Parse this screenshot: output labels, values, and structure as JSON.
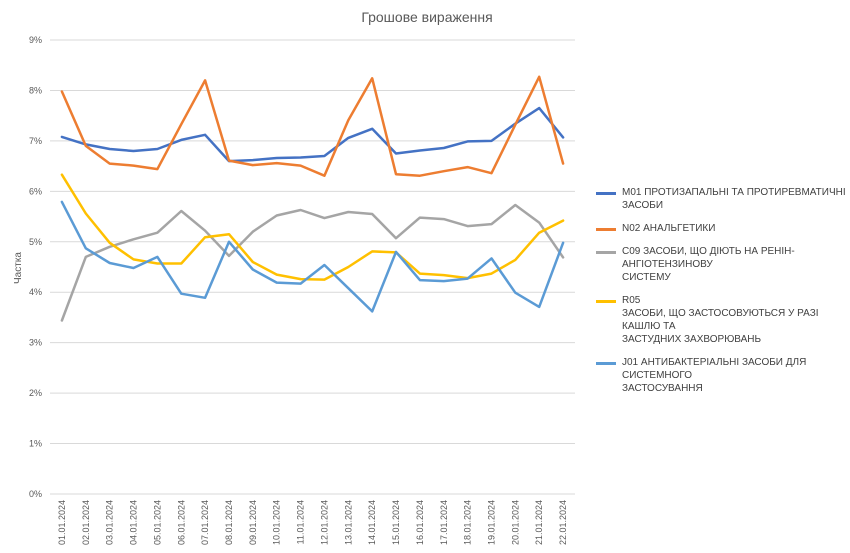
{
  "chart_data": {
    "type": "line",
    "title": "Грошове вираження",
    "ylabel": "Частка",
    "xlabel": "",
    "ylim": [
      0,
      9
    ],
    "y_ticks": [
      "0%",
      "1%",
      "2%",
      "3%",
      "4%",
      "5%",
      "6%",
      "7%",
      "8%",
      "9%"
    ],
    "categories": [
      "01.01.2024",
      "02.01.2024",
      "03.01.2024",
      "04.01.2024",
      "05.01.2024",
      "06.01.2024",
      "07.01.2024",
      "08.01.2024",
      "09.01.2024",
      "10.01.2024",
      "11.01.2024",
      "12.01.2024",
      "13.01.2024",
      "14.01.2024",
      "15.01.2024",
      "16.01.2024",
      "17.01.2024",
      "18.01.2024",
      "19.01.2024",
      "20.01.2024",
      "21.01.2024",
      "22.01.2024"
    ],
    "grid": true,
    "legend_position": "right",
    "series": [
      {
        "name": "M01 ПРОТИЗАПАЛЬНІ ТА ПРОТИРЕВМАТИЧНІ ЗАСОБИ",
        "color": "#4472C4",
        "values": [
          7.08,
          6.93,
          6.84,
          6.8,
          6.84,
          7.02,
          7.12,
          6.6,
          6.62,
          6.66,
          6.67,
          6.7,
          7.06,
          7.24,
          6.75,
          6.81,
          6.86,
          6.99,
          7.0,
          7.34,
          7.65,
          7.07
        ]
      },
      {
        "name": "N02 АНАЛЬГЕТИКИ",
        "color": "#ED7D31",
        "values": [
          7.98,
          6.9,
          6.55,
          6.51,
          6.44,
          7.33,
          8.2,
          6.61,
          6.52,
          6.56,
          6.51,
          6.31,
          7.41,
          8.24,
          6.34,
          6.31,
          6.4,
          6.48,
          6.36,
          7.32,
          8.27,
          6.55
        ]
      },
      {
        "name": "C09 ЗАСОБИ, ЩО ДІЮТЬ НА РЕНІН-АНГІОТЕНЗИНОВУ\nСИСТЕМУ",
        "color": "#A5A5A5",
        "values": [
          3.44,
          4.7,
          4.9,
          5.05,
          5.18,
          5.61,
          5.22,
          4.72,
          5.2,
          5.52,
          5.63,
          5.47,
          5.59,
          5.55,
          5.07,
          5.48,
          5.45,
          5.31,
          5.35,
          5.73,
          5.38,
          4.69
        ]
      },
      {
        "name": "R05\nЗАСОБИ, ЩО ЗАСТОСОВУЮТЬСЯ У РАЗІ КАШЛЮ ТА\nЗАСТУДНИХ ЗАХВОРЮВАНЬ",
        "color": "#FFC000",
        "values": [
          6.33,
          5.56,
          4.98,
          4.65,
          4.57,
          4.57,
          5.09,
          5.15,
          4.6,
          4.35,
          4.26,
          4.25,
          4.5,
          4.81,
          4.79,
          4.37,
          4.34,
          4.28,
          4.37,
          4.64,
          5.18,
          5.42
        ]
      },
      {
        "name": "J01 АНТИБАКТЕРІАЛЬНІ ЗАСОБИ ДЛЯ СИСТЕМНОГО\nЗАСТОСУВАННЯ",
        "color": "#5B9BD5",
        "values": [
          5.79,
          4.87,
          4.58,
          4.48,
          4.7,
          3.97,
          3.89,
          5.0,
          4.45,
          4.19,
          4.17,
          4.54,
          4.08,
          3.62,
          4.8,
          4.24,
          4.22,
          4.27,
          4.67,
          3.99,
          3.71,
          4.98
        ]
      }
    ]
  }
}
